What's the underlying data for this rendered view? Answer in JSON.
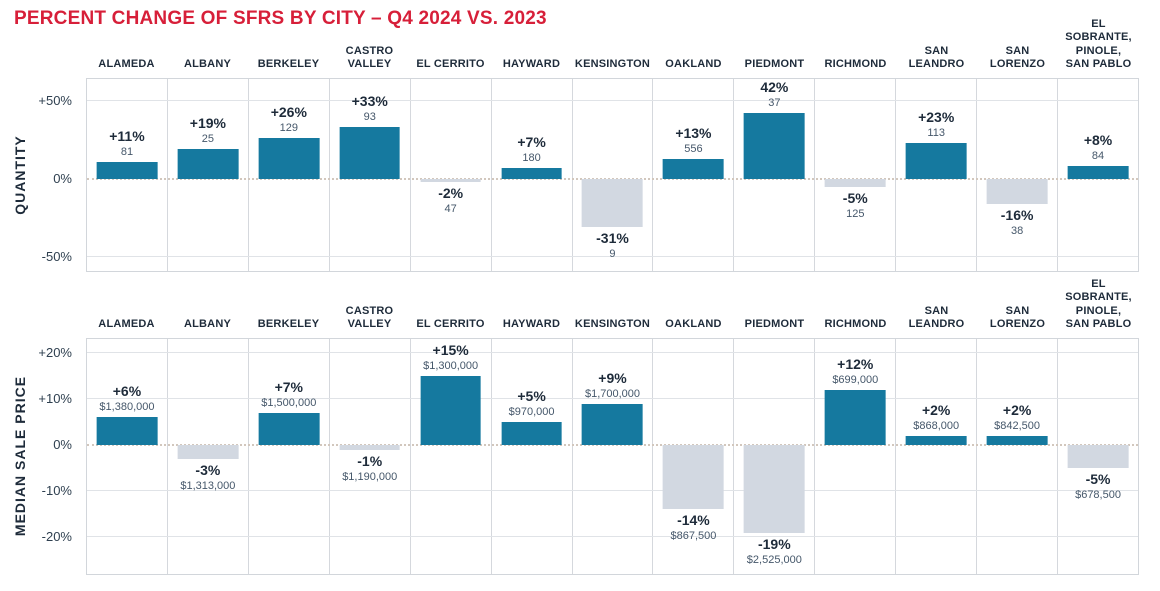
{
  "page": {
    "title": "PERCENT CHANGE OF SFRS BY CITY – Q4 2024 VS. 2023"
  },
  "colors": {
    "title_red": "#d71f39",
    "positive_bar_teal": "#15799f",
    "negative_bar_gray": "#d2d8e1",
    "header_navy": "#1e2b3a",
    "grid_line": "#e0e3e7",
    "zero_line_dotted": "#d2c7bd",
    "panel_border": "#d2d6db"
  },
  "chart_data": [
    {
      "type": "bar",
      "title": "QUANTITY",
      "categories": [
        "ALAMEDA",
        "ALBANY",
        "BERKELEY",
        "CASTRO VALLEY",
        "EL CERRITO",
        "HAYWARD",
        "KENSINGTON",
        "OAKLAND",
        "PIEDMONT",
        "RICHMOND",
        "SAN LEANDRO",
        "SAN LORENZO",
        "EL SOBRANTE, PINOLE, SAN PABLO"
      ],
      "header_lines": [
        [
          "ALAMEDA"
        ],
        [
          "ALBANY"
        ],
        [
          "BERKELEY"
        ],
        [
          "CASTRO",
          "VALLEY"
        ],
        [
          "EL CERRITO"
        ],
        [
          "HAYWARD"
        ],
        [
          "KENSINGTON"
        ],
        [
          "OAKLAND"
        ],
        [
          "PIEDMONT"
        ],
        [
          "RICHMOND"
        ],
        [
          "SAN",
          "LEANDRO"
        ],
        [
          "SAN",
          "LORENZO"
        ],
        [
          "EL SOBRANTE,",
          "PINOLE,",
          "SAN PABLO"
        ]
      ],
      "values": [
        11,
        19,
        26,
        33,
        -2,
        7,
        -31,
        13,
        42,
        -5,
        23,
        -16,
        8
      ],
      "percent_labels": [
        "+11%",
        "+19%",
        "+26%",
        "+33%",
        "-2%",
        "+7%",
        "-31%",
        "+13%",
        "42%",
        "-5%",
        "+23%",
        "-16%",
        "+8%"
      ],
      "value_labels": [
        "81",
        "25",
        "129",
        "93",
        "47",
        "180",
        "9",
        "556",
        "37",
        "125",
        "113",
        "38",
        "84"
      ],
      "yticks": [
        {
          "label": "+50%",
          "value": 50
        },
        {
          "label": "0%",
          "value": 0
        },
        {
          "label": "-50%",
          "value": -50
        }
      ],
      "ylim": [
        -59,
        64
      ],
      "grid": true,
      "legend": "none"
    },
    {
      "type": "bar",
      "title": "MEDIAN SALE PRICE",
      "categories": [
        "ALAMEDA",
        "ALBANY",
        "BERKELEY",
        "CASTRO VALLEY",
        "EL CERRITO",
        "HAYWARD",
        "KENSINGTON",
        "OAKLAND",
        "PIEDMONT",
        "RICHMOND",
        "SAN LEANDRO",
        "SAN LORENZO",
        "EL SOBRANTE, PINOLE, SAN PABLO"
      ],
      "header_lines": [
        [
          "ALAMEDA"
        ],
        [
          "ALBANY"
        ],
        [
          "BERKELEY"
        ],
        [
          "CASTRO",
          "VALLEY"
        ],
        [
          "EL CERRITO"
        ],
        [
          "HAYWARD"
        ],
        [
          "KENSINGTON"
        ],
        [
          "OAKLAND"
        ],
        [
          "PIEDMONT"
        ],
        [
          "RICHMOND"
        ],
        [
          "SAN",
          "LEANDRO"
        ],
        [
          "SAN",
          "LORENZO"
        ],
        [
          "EL SOBRANTE,",
          "PINOLE,",
          "SAN PABLO"
        ]
      ],
      "values": [
        6,
        -3,
        7,
        -1,
        15,
        5,
        9,
        -14,
        -19,
        12,
        2,
        2,
        -5
      ],
      "percent_labels": [
        "+6%",
        "-3%",
        "+7%",
        "-1%",
        "+15%",
        "+5%",
        "+9%",
        "-14%",
        "-19%",
        "+12%",
        "+2%",
        "+2%",
        "-5%"
      ],
      "value_labels": [
        "$1,380,000",
        "$1,313,000",
        "$1,500,000",
        "$1,190,000",
        "$1,300,000",
        "$970,000",
        "$1,700,000",
        "$867,500",
        "$2,525,000",
        "$699,000",
        "$868,000",
        "$842,500",
        "$678,500"
      ],
      "yticks": [
        {
          "label": "+20%",
          "value": 20
        },
        {
          "label": "+10%",
          "value": 10
        },
        {
          "label": "0%",
          "value": 0
        },
        {
          "label": "-10%",
          "value": -10
        },
        {
          "label": "-20%",
          "value": -20
        }
      ],
      "ylim": [
        -28,
        23
      ],
      "grid": true,
      "legend": "none"
    }
  ]
}
